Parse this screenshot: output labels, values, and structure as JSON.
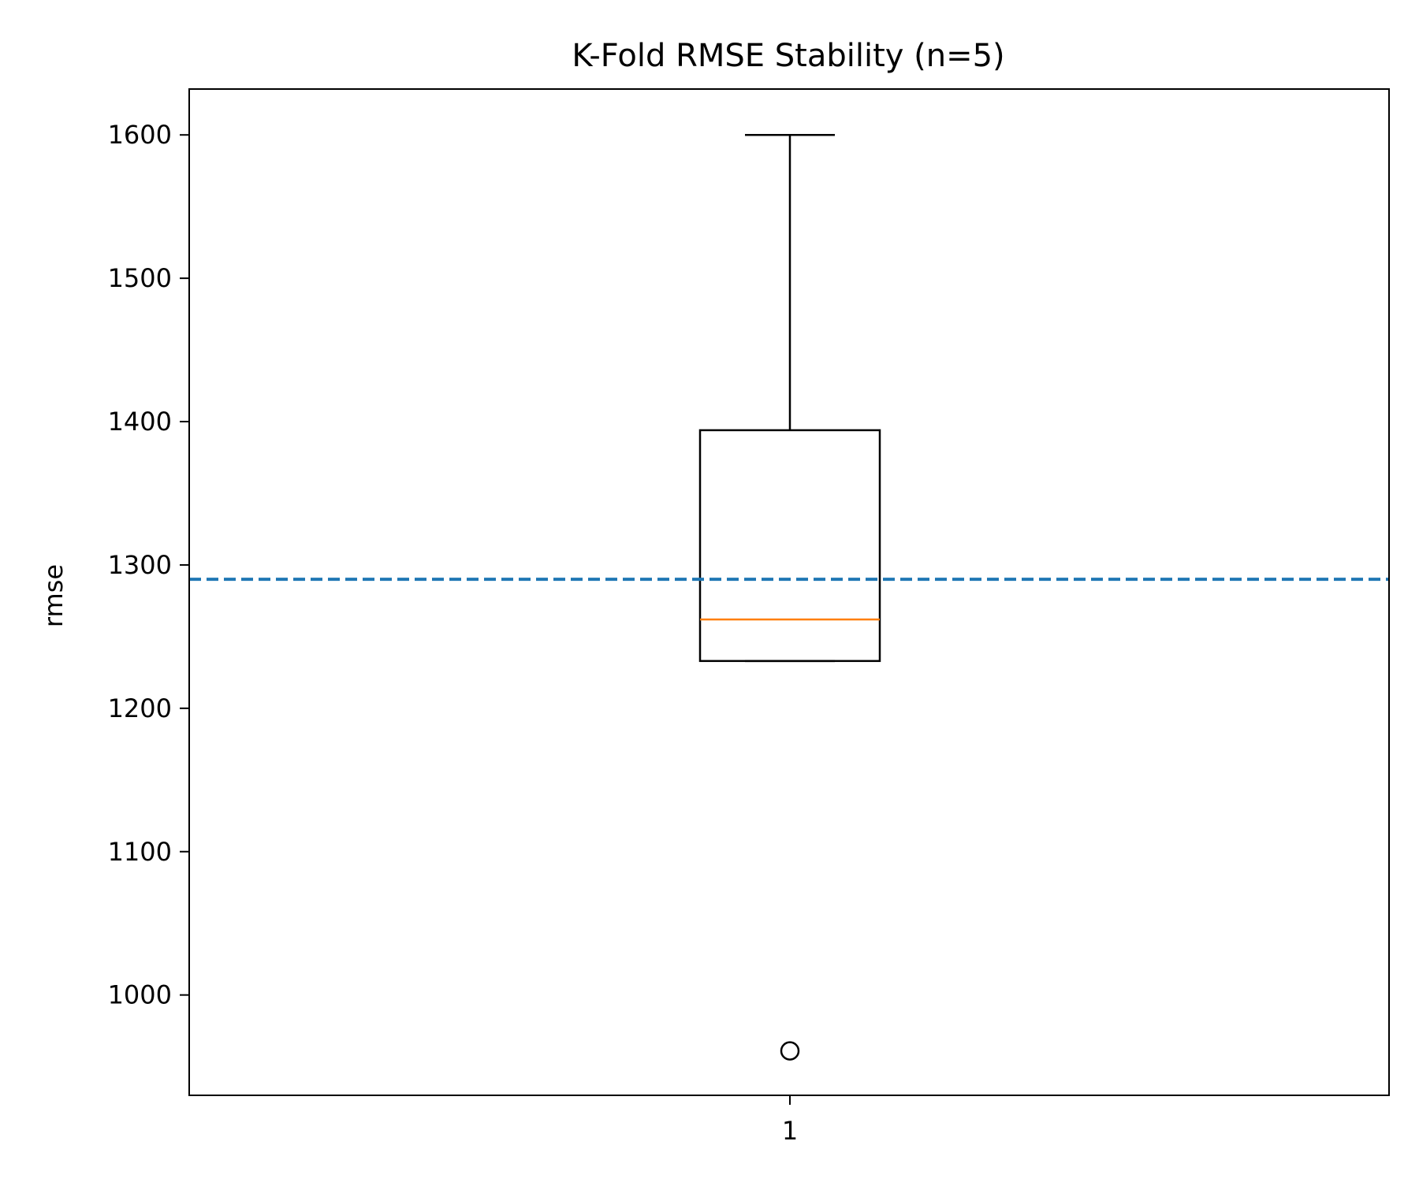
{
  "chart_data": {
    "type": "box",
    "title": "K-Fold RMSE Stability (n=5)",
    "xlabel": "",
    "ylabel": "rmse",
    "categories": [
      "1"
    ],
    "box": {
      "whisker_low": 1233,
      "q1": 1233,
      "median": 1262,
      "q3": 1394,
      "whisker_high": 1600,
      "outliers": [
        961
      ]
    },
    "reference_line": {
      "value": 1290,
      "style": "dashed",
      "color": "#1f77b4"
    },
    "ylim": [
      930,
      1632
    ],
    "yticks": [
      1000,
      1100,
      1200,
      1300,
      1400,
      1500,
      1600
    ],
    "grid": false,
    "colors": {
      "median": "#ff7f0e",
      "reference": "#1f77b4",
      "box": "#000000"
    }
  }
}
